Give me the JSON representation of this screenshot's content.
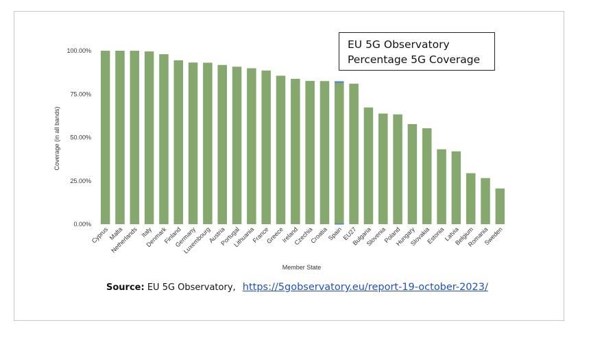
{
  "title": {
    "line1": "EU 5G Observatory",
    "line2": "Percentage 5G Coverage"
  },
  "source": {
    "label": "Source:",
    "text": "EU 5G Observatory,",
    "link": "https://5gobservatory.eu/report-19-october-2023/"
  },
  "colors": {
    "bar": "#84a86d",
    "highlight": "#4a7fd6",
    "axis": "#555555"
  },
  "chart_data": {
    "type": "bar",
    "categories": [
      "Cyprus",
      "Malta",
      "Netherlands",
      "Italy",
      "Denmark",
      "Finland",
      "Germany",
      "Luxembourg",
      "Austria",
      "Portugal",
      "Lithuania",
      "France",
      "Greece",
      "Ireland",
      "Czechia",
      "Croatia",
      "Spain",
      "EU27",
      "Bulgaria",
      "Slovenia",
      "Poland",
      "Hungary",
      "Slovakia",
      "Estonia",
      "Latvia",
      "Belgium",
      "Romania",
      "Sweden"
    ],
    "values": [
      100,
      100,
      100,
      99.6,
      98.0,
      94.5,
      93.2,
      93.1,
      91.8,
      90.8,
      89.9,
      88.6,
      85.6,
      83.8,
      82.6,
      82.5,
      82.0,
      81.0,
      67.3,
      63.8,
      63.3,
      57.7,
      55.3,
      43.2,
      42.0,
      29.4,
      26.6,
      20.6
    ],
    "xlabel": "Member State",
    "ylabel": "Coverage (in all bands)",
    "ylim": [
      0,
      100
    ],
    "yticks": [
      "0.00%",
      "25.00%",
      "50.00%",
      "75.00%",
      "100.00%"
    ],
    "ytick_values": [
      0,
      25,
      50,
      75,
      100
    ],
    "grid": false,
    "legend": "none"
  }
}
